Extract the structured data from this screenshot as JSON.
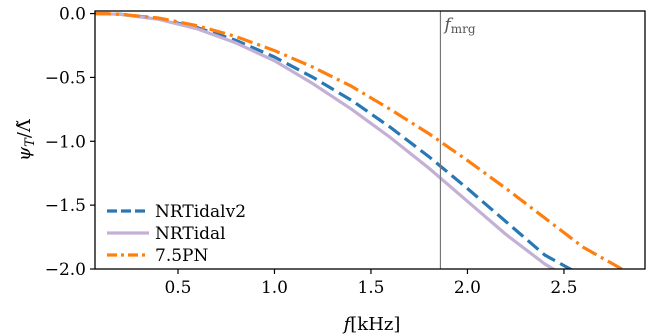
{
  "chart_data": {
    "type": "line",
    "xlabel_main": "f",
    "xlabel_unit": "[kHz]",
    "ylabel_main": "ψ",
    "ylabel_sub": "T",
    "ylabel_den": "/Λ̃",
    "xlim": [
      0.07,
      2.92
    ],
    "ylim": [
      -2.0,
      0.02
    ],
    "xticks": [
      0.5,
      1.0,
      1.5,
      2.0,
      2.5
    ],
    "xtick_labels": [
      "0.5",
      "1.0",
      "1.5",
      "2.0",
      "2.5"
    ],
    "yticks": [
      0.0,
      -0.5,
      -1.0,
      -1.5,
      -2.0
    ],
    "ytick_labels": [
      "0.0",
      "−0.5",
      "−1.0",
      "−1.5",
      "−2.0"
    ],
    "grid": false,
    "legend_position": "lower-left",
    "annotation": {
      "vline_x": 1.86,
      "label_main": "f",
      "label_sub": "mrg",
      "color": "#777777"
    },
    "series": [
      {
        "name": "NRTidalv2",
        "color": "#2878b5",
        "style": "dashed",
        "x": [
          0.07,
          0.2,
          0.4,
          0.6,
          0.8,
          1.0,
          1.2,
          1.4,
          1.6,
          1.8,
          2.0,
          2.2,
          2.4,
          2.58
        ],
        "y": [
          0.0,
          -0.005,
          -0.04,
          -0.11,
          -0.21,
          -0.34,
          -0.5,
          -0.68,
          -0.89,
          -1.12,
          -1.37,
          -1.63,
          -1.89,
          -2.04
        ]
      },
      {
        "name": "NRTidal",
        "color": "#c5b0d5",
        "style": "solid",
        "x": [
          0.07,
          0.2,
          0.4,
          0.6,
          0.8,
          1.0,
          1.2,
          1.4,
          1.6,
          1.8,
          2.0,
          2.2,
          2.4,
          2.5
        ],
        "y": [
          0.0,
          -0.006,
          -0.045,
          -0.12,
          -0.23,
          -0.37,
          -0.55,
          -0.75,
          -0.97,
          -1.21,
          -1.47,
          -1.73,
          -1.96,
          -2.05
        ]
      },
      {
        "name": "7.5PN",
        "color": "#ff7f0e",
        "style": "dashdot",
        "x": [
          0.07,
          0.2,
          0.4,
          0.6,
          0.8,
          1.0,
          1.2,
          1.4,
          1.6,
          1.8,
          2.0,
          2.2,
          2.4,
          2.6,
          2.8,
          2.83
        ],
        "y": [
          0.0,
          -0.005,
          -0.035,
          -0.095,
          -0.18,
          -0.29,
          -0.42,
          -0.57,
          -0.75,
          -0.94,
          -1.15,
          -1.37,
          -1.6,
          -1.83,
          -2.0,
          -2.04
        ]
      }
    ]
  }
}
